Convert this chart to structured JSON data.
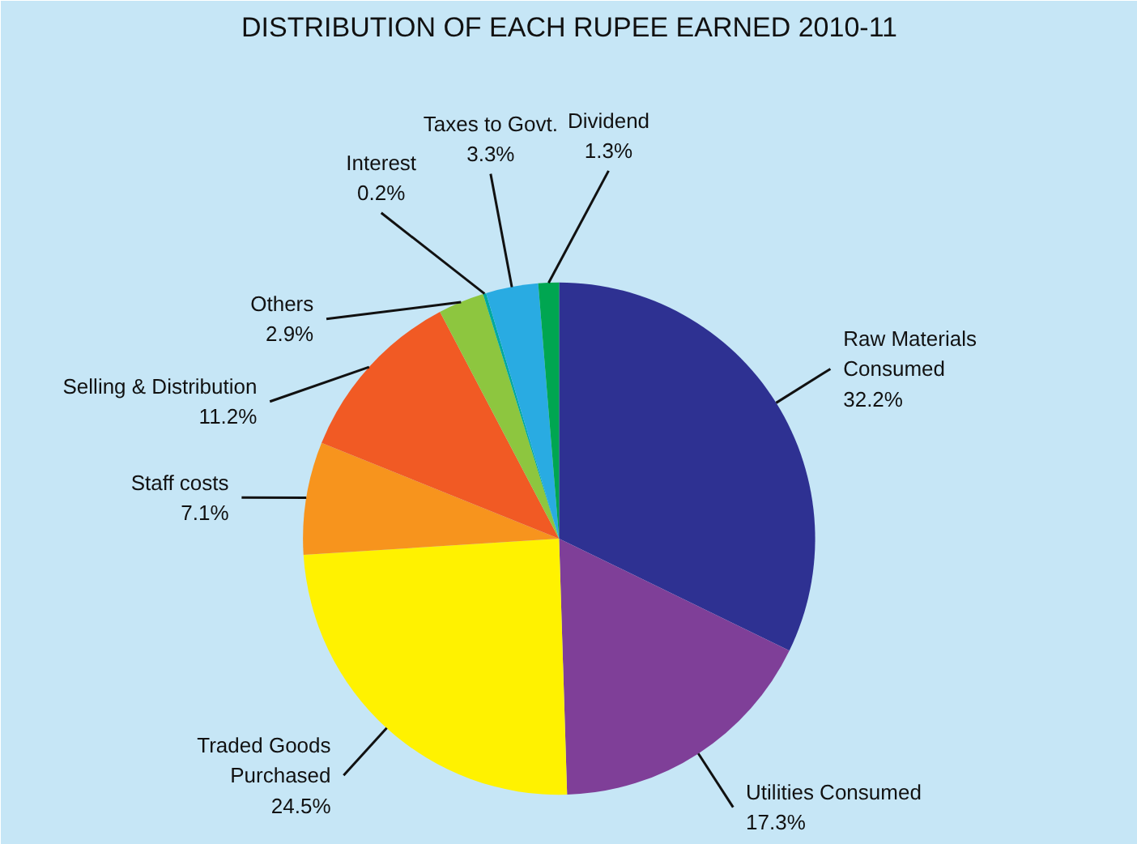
{
  "chart_data": {
    "type": "pie",
    "title": "DISTRIBUTION OF EACH RUPEE EARNED 2010-11",
    "categories": [
      "Raw Materials\nConsumed",
      "Utilities Consumed",
      "Traded Goods\nPurchased",
      "Staff costs",
      "Selling & Distribution",
      "Others",
      "Interest",
      "Taxes to Govt.",
      "Dividend"
    ],
    "values": [
      32.2,
      17.3,
      24.5,
      7.1,
      11.2,
      2.9,
      0.2,
      3.3,
      1.3
    ],
    "value_labels": [
      "32.2%",
      "17.3%",
      "24.5%",
      "7.1%",
      "11.2%",
      "2.9%",
      "0.2%",
      "3.3%",
      "1.3%"
    ],
    "colors": [
      "#2e3192",
      "#7f3f98",
      "#fff200",
      "#f7941d",
      "#f15a24",
      "#8dc63f",
      "#00a99d",
      "#29abe2",
      "#00a651"
    ]
  }
}
